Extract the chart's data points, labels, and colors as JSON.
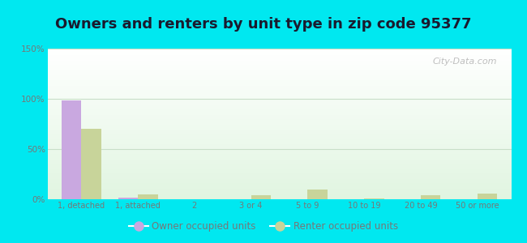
{
  "title": "Owners and renters by unit type in zip code 95377",
  "categories": [
    "1, detached",
    "1, attached",
    "2",
    "3 or 4",
    "5 to 9",
    "10 to 19",
    "20 to 49",
    "50 or more"
  ],
  "owner_values": [
    98,
    2,
    0,
    0,
    0,
    0,
    0,
    0
  ],
  "renter_values": [
    70,
    5,
    0,
    4,
    10,
    1,
    4,
    6
  ],
  "owner_color": "#c9a8e0",
  "renter_color": "#c8d49a",
  "owner_label": "Owner occupied units",
  "renter_label": "Renter occupied units",
  "ylim": [
    0,
    150
  ],
  "yticks": [
    0,
    50,
    100,
    150
  ],
  "ytick_labels": [
    "0%",
    "50%",
    "100%",
    "150%"
  ],
  "background_outer": "#00e8f0",
  "title_fontsize": 13,
  "watermark": "City-Data.com",
  "bar_width": 0.35,
  "grid_color": "#c8dfc8",
  "tick_color": "#777777",
  "title_color": "#1a1a2e"
}
